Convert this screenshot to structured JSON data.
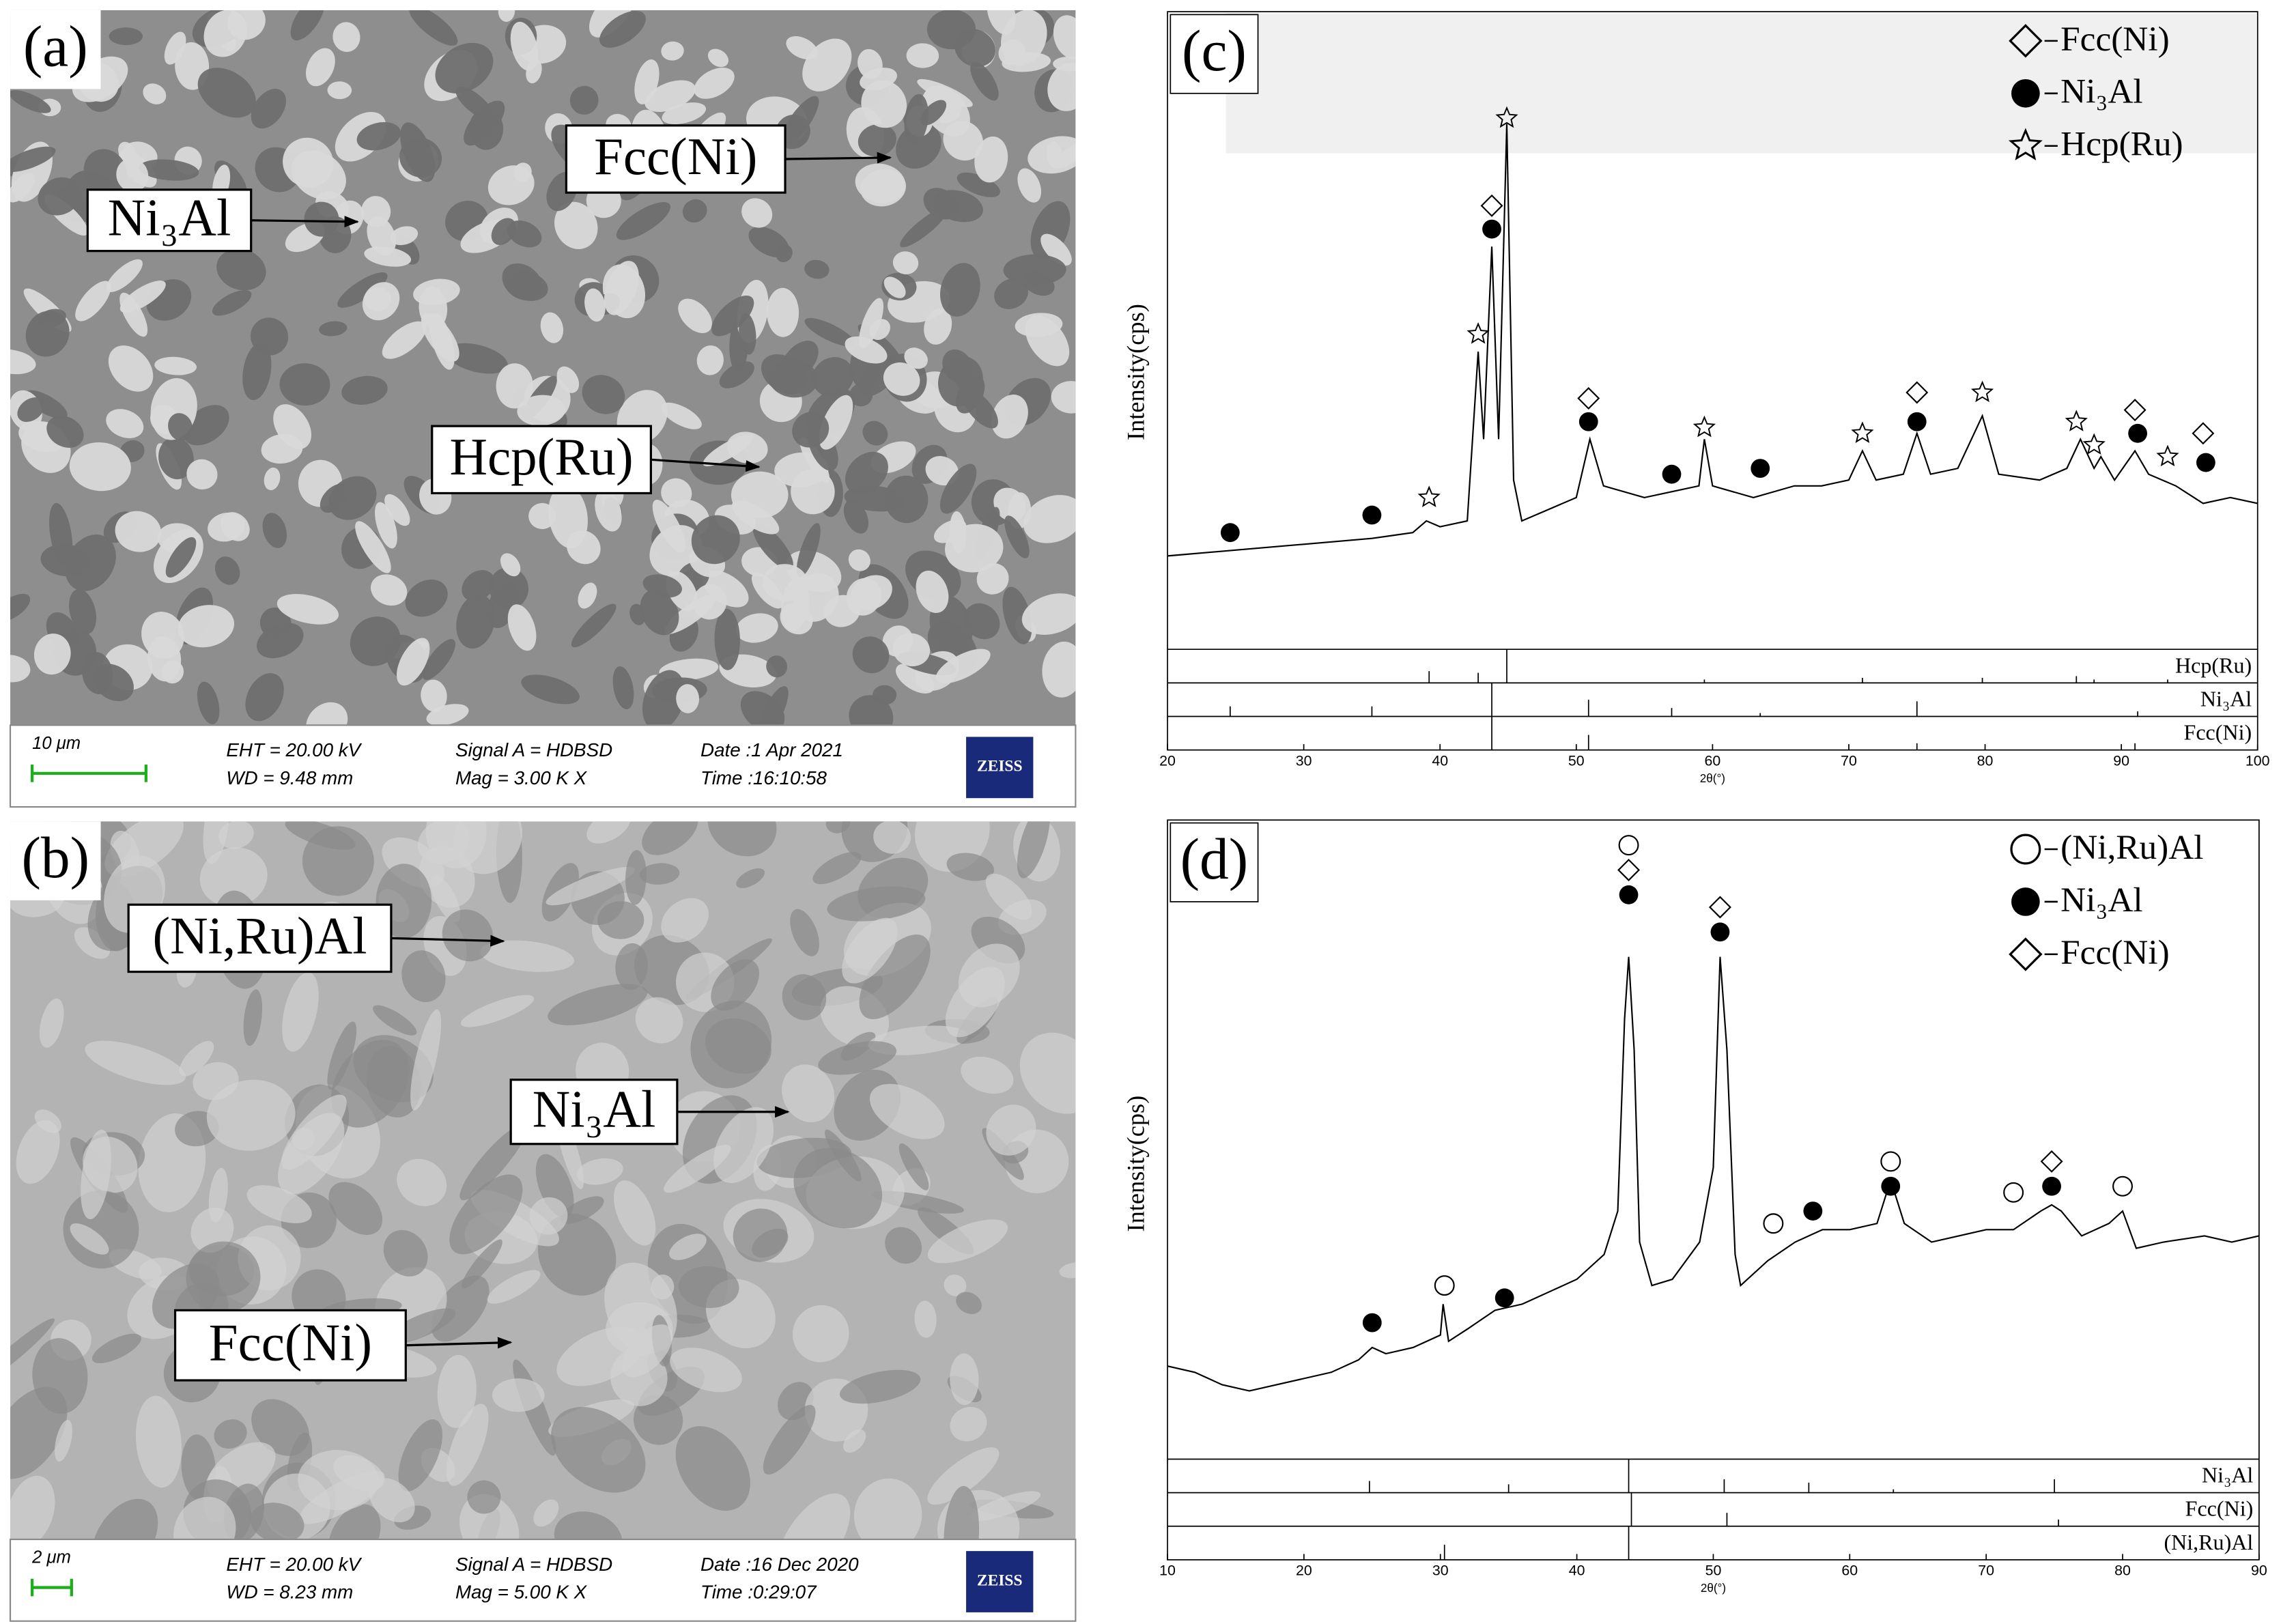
{
  "micrographs": [
    {
      "panel": "(a)",
      "annotations": [
        "Ni₃Al",
        "Fcc(Ni)",
        "Hcp(Ru)"
      ],
      "scale_bar": "10 μm",
      "info": [
        "EHT = 20.00 kV",
        "WD = 9.48 mm",
        "Signal A = HDBSD",
        "Mag =   3.00 K X",
        "Date :1 Apr 2021",
        "Time :16:10:58"
      ],
      "logo": "ZEISS"
    },
    {
      "panel": "(b)",
      "annotations": [
        "(Ni,Ru)Al",
        "Ni₃Al",
        "Fcc(Ni)"
      ],
      "scale_bar": "2 μm",
      "info": [
        "EHT = 20.00 kV",
        "WD = 8.23 mm",
        "Signal A = HDBSD",
        "Mag =   5.00 K X",
        "Date :16 Dec 2020",
        "Time :0:29:07"
      ],
      "logo": "ZEISS"
    }
  ],
  "chart_data": [
    {
      "type": "line",
      "panel": "(c)",
      "x_label": "2θ(°)",
      "y_label": "Intensity(cps)",
      "xlim": [
        20,
        100
      ],
      "xticks": [
        20,
        30,
        40,
        50,
        60,
        70,
        80,
        90,
        100
      ],
      "ylim": [
        0,
        100
      ],
      "pattern": {
        "color": "#000000",
        "x": [
          20,
          25,
          30,
          35,
          38,
          39,
          40,
          42,
          42.8,
          43.2,
          43.8,
          44.3,
          44.9,
          45.4,
          46,
          48,
          50,
          51,
          52,
          55,
          57,
          59,
          59.4,
          60,
          63,
          66,
          68,
          70,
          71,
          72,
          74,
          75,
          76,
          78,
          79.8,
          81,
          84,
          86,
          87,
          88,
          88.5,
          89.5,
          91,
          92,
          94,
          96,
          98,
          100
        ],
        "values": [
          16,
          17,
          18,
          19,
          20,
          22,
          21,
          22,
          51,
          36,
          69,
          36,
          90,
          29,
          22,
          24,
          26,
          36,
          28,
          26,
          27,
          28,
          36,
          28,
          26,
          28,
          28,
          29,
          34,
          29,
          30,
          37,
          30,
          31,
          40,
          30,
          29,
          31,
          36,
          31,
          33,
          29,
          34,
          30,
          28,
          25,
          26,
          25
        ]
      },
      "series": [
        {
          "name": "Fcc(Ni)",
          "symbol": "diamond",
          "x": [
            43.8,
            50.9,
            75,
            91,
            96
          ],
          "values": [
            76,
            43,
            44,
            41,
            37
          ]
        },
        {
          "name": "Ni₃Al",
          "symbol": "dot",
          "x": [
            24.6,
            35,
            43.8,
            50.9,
            57,
            63.5,
            75,
            91.2,
            96.2
          ],
          "values": [
            20,
            23,
            72,
            39,
            30,
            31,
            39,
            37,
            32
          ]
        },
        {
          "name": "Hcp(Ru)",
          "symbol": "star",
          "x": [
            39.2,
            42.8,
            44.9,
            59.4,
            71,
            79.8,
            86.7,
            88,
            93.4
          ],
          "values": [
            26,
            54,
            91,
            38,
            37,
            44,
            39,
            35,
            33
          ]
        }
      ],
      "references": [
        {
          "name": "Hcp(Ru)",
          "x": [
            39.2,
            42.8,
            44.9,
            59.4,
            71,
            79.8,
            86.7,
            88,
            93.4
          ],
          "values": [
            35,
            30,
            100,
            10,
            15,
            15,
            20,
            10,
            10
          ]
        },
        {
          "name": "Ni₃Al",
          "x": [
            24.6,
            35,
            43.8,
            50.9,
            57,
            63.5,
            75,
            91.2
          ],
          "values": [
            30,
            30,
            100,
            50,
            25,
            10,
            45,
            15
          ]
        },
        {
          "name": "Fcc(Ni)",
          "x": [
            43.8,
            50.9,
            75,
            91
          ],
          "values": [
            100,
            45,
            20,
            20
          ]
        }
      ]
    },
    {
      "type": "line",
      "panel": "(d)",
      "x_label": "2θ(°)",
      "y_label": "Intensity(cps)",
      "xlim": [
        10,
        90
      ],
      "xticks": [
        10,
        20,
        30,
        40,
        50,
        60,
        70,
        80,
        90
      ],
      "ylim": [
        0,
        100
      ],
      "pattern": {
        "color": "#000000",
        "x": [
          10,
          12,
          14,
          16,
          18,
          20,
          22,
          24,
          25,
          26,
          28,
          30,
          30.2,
          30.6,
          32,
          34,
          36,
          38,
          40,
          42,
          43,
          43.5,
          43.8,
          44.2,
          44.6,
          45.5,
          47,
          49,
          50,
          50.5,
          51,
          51.6,
          52,
          54,
          56,
          58,
          60,
          62,
          63,
          64,
          66,
          68,
          70,
          72,
          74,
          74.8,
          75.5,
          77,
          79,
          80,
          81,
          83,
          86,
          88,
          90
        ],
        "values": [
          15,
          14,
          12,
          11,
          12,
          13,
          14,
          16,
          18,
          17,
          18,
          20,
          25,
          19,
          21,
          24,
          25,
          27,
          29,
          33,
          40,
          71,
          81,
          66,
          35,
          28,
          29,
          35,
          47,
          81,
          66,
          33,
          28,
          32,
          35,
          37,
          37,
          38,
          45,
          38,
          35,
          36,
          37,
          37,
          40,
          41,
          40,
          36,
          38,
          40,
          34,
          35,
          36,
          35,
          36
        ]
      },
      "series": [
        {
          "name": "(Ni,Ru)Al",
          "symbol": "circle",
          "x": [
            30.3,
            43.8,
            54.4,
            63,
            72,
            80
          ],
          "values": [
            28,
            99,
            38,
            48,
            43,
            44
          ]
        },
        {
          "name": "Ni₃Al",
          "symbol": "dot",
          "x": [
            25,
            34.7,
            43.8,
            50.5,
            57.3,
            63,
            74.8
          ],
          "values": [
            22,
            26,
            91,
            85,
            40,
            44,
            44
          ]
        },
        {
          "name": "Fcc(Ni)",
          "symbol": "diamond",
          "x": [
            43.8,
            50.5,
            74.8
          ],
          "values": [
            95,
            89,
            48
          ]
        }
      ],
      "references": [
        {
          "name": "Ni₃Al",
          "x": [
            24.8,
            35,
            43.8,
            50.8,
            57,
            63.2,
            75
          ],
          "values": [
            35,
            25,
            100,
            40,
            30,
            10,
            40
          ]
        },
        {
          "name": "Fcc(Ni)",
          "x": [
            44,
            51,
            75.3
          ],
          "values": [
            100,
            40,
            20
          ]
        },
        {
          "name": "(Ni,Ru)Al",
          "x": [
            30.3,
            43.8
          ],
          "values": [
            45,
            100
          ]
        }
      ]
    }
  ]
}
